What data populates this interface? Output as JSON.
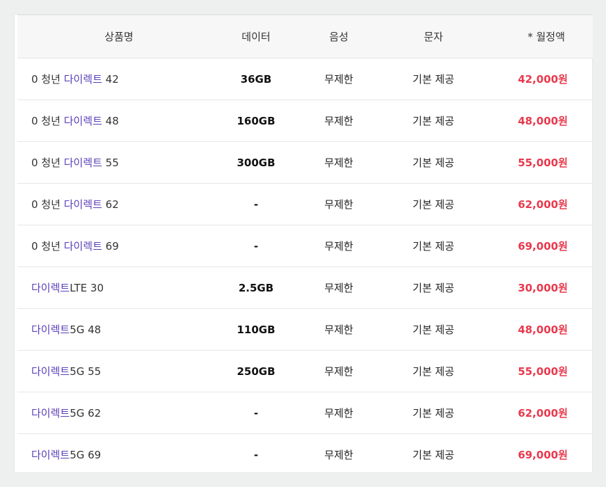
{
  "table": {
    "headers": {
      "name": "상품명",
      "data": "데이터",
      "voice": "음성",
      "sms": "문자",
      "price": "* 월정액"
    },
    "rows": [
      {
        "prefix": "0 청년 ",
        "brand": "다이렉트",
        "suffix": " 42",
        "data": "36GB",
        "voice": "무제한",
        "sms": "기본 제공",
        "price": "42,000원"
      },
      {
        "prefix": "0 청년 ",
        "brand": "다이렉트",
        "suffix": " 48",
        "data": "160GB",
        "voice": "무제한",
        "sms": "기본 제공",
        "price": "48,000원"
      },
      {
        "prefix": "0 청년 ",
        "brand": "다이렉트",
        "suffix": " 55",
        "data": "300GB",
        "voice": "무제한",
        "sms": "기본 제공",
        "price": "55,000원"
      },
      {
        "prefix": "0 청년 ",
        "brand": "다이렉트",
        "suffix": " 62",
        "data": "-",
        "voice": "무제한",
        "sms": "기본 제공",
        "price": "62,000원"
      },
      {
        "prefix": "0 청년 ",
        "brand": "다이렉트",
        "suffix": " 69",
        "data": "-",
        "voice": "무제한",
        "sms": "기본 제공",
        "price": "69,000원"
      },
      {
        "prefix": "",
        "brand": "다이렉트",
        "suffix": "LTE 30",
        "data": "2.5GB",
        "voice": "무제한",
        "sms": "기본 제공",
        "price": "30,000원"
      },
      {
        "prefix": "",
        "brand": "다이렉트",
        "suffix": "5G 48",
        "data": "110GB",
        "voice": "무제한",
        "sms": "기본 제공",
        "price": "48,000원"
      },
      {
        "prefix": "",
        "brand": "다이렉트",
        "suffix": "5G 55",
        "data": "250GB",
        "voice": "무제한",
        "sms": "기본 제공",
        "price": "55,000원"
      },
      {
        "prefix": "",
        "brand": "다이렉트",
        "suffix": "5G 62",
        "data": "-",
        "voice": "무제한",
        "sms": "기본 제공",
        "price": "62,000원"
      },
      {
        "prefix": "",
        "brand": "다이렉트",
        "suffix": "5G 69",
        "data": "-",
        "voice": "무제한",
        "sms": "기본 제공",
        "price": "69,000원"
      }
    ],
    "colors": {
      "brand": "#5a3fb8",
      "price": "#e8394d"
    }
  }
}
